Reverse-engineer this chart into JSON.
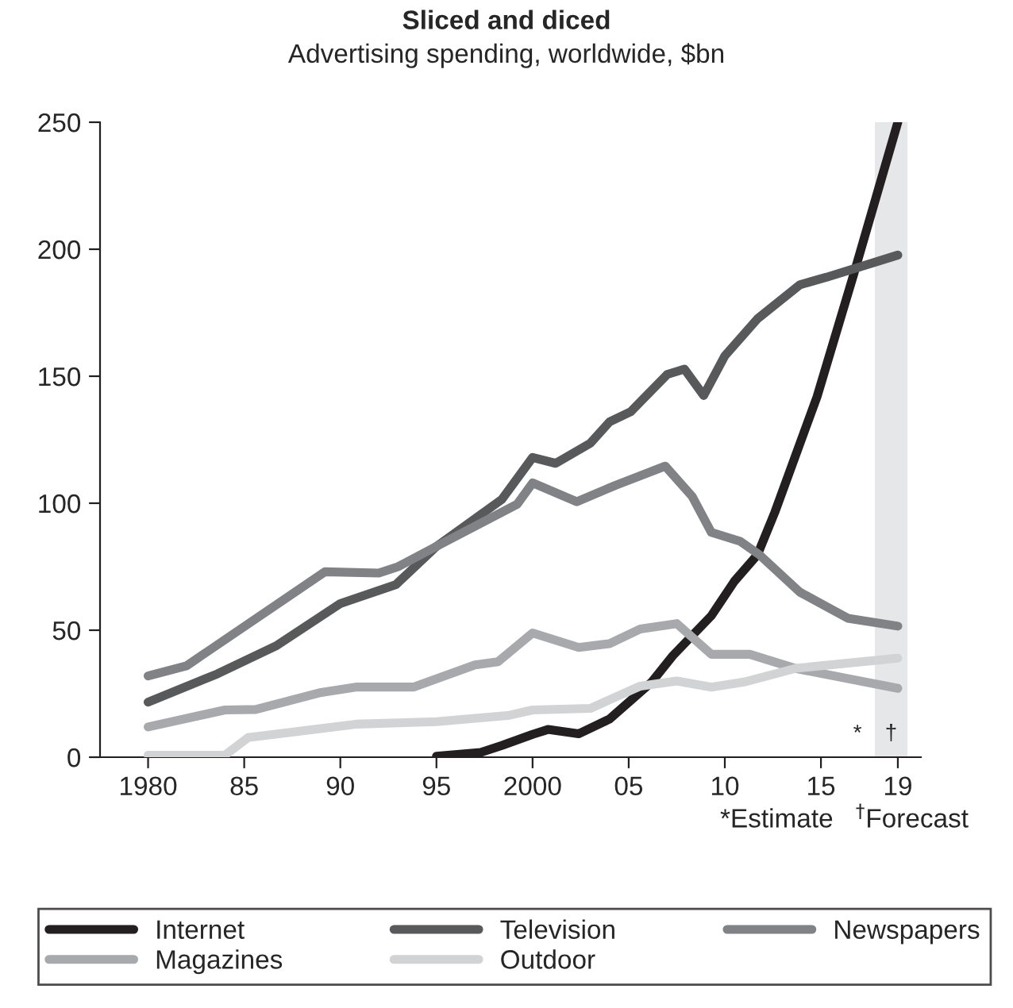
{
  "chart_data": {
    "type": "line",
    "title": "Sliced and diced",
    "subtitle": "Advertising spending, worldwide, $bn",
    "xlim": [
      1977.5,
      2020.2
    ],
    "ylim": [
      0,
      250
    ],
    "xticks": [
      {
        "value": 1980,
        "label": "1980"
      },
      {
        "value": 1985,
        "label": "85"
      },
      {
        "value": 1990,
        "label": "90"
      },
      {
        "value": 1995,
        "label": "95"
      },
      {
        "value": 2000,
        "label": "2000"
      },
      {
        "value": 2005,
        "label": "05"
      },
      {
        "value": 2010,
        "label": "10"
      },
      {
        "value": 2015,
        "label": "15"
      },
      {
        "value": 2019,
        "label": "19"
      }
    ],
    "yticks": [
      0,
      50,
      100,
      150,
      200,
      250
    ],
    "grid": false,
    "legend": "bottom",
    "line_style": "solid",
    "marker": "none",
    "bands": [
      {
        "axis": "x",
        "from": 2017.8,
        "to": 2019.5,
        "color": "#e6e7e8",
        "label": "†"
      }
    ],
    "annotations": [
      "*",
      "*Estimate   $^{†}$Forecast"
    ],
    "series": [
      {
        "name": "Internet",
        "color": "#231f20",
        "x": [
          1995,
          1997.3,
          1998.4,
          2000,
          2000.8,
          2002.4,
          2004,
          2006.2,
          2007.3,
          2009.3,
          2010.5,
          2011.7,
          2012.6,
          2014.8,
          2016.7,
          2019
        ],
        "values": [
          0.4,
          1.9,
          4.6,
          9,
          10.9,
          9.2,
          15,
          29.6,
          40,
          55.7,
          69.3,
          79.7,
          96.4,
          142,
          190,
          250
        ]
      },
      {
        "name": "Television",
        "color": "#58595b",
        "x": [
          1980,
          1983.6,
          1986.7,
          1990,
          1992.9,
          1995,
          1998.4,
          2000,
          2001.2,
          2003,
          2004,
          2005.1,
          2007,
          2007.9,
          2008.9,
          2010,
          2011.7,
          2013.9,
          2015.3,
          2019
        ],
        "values": [
          21.7,
          32.8,
          44,
          60.5,
          68,
          83,
          101.5,
          118,
          115.7,
          123.6,
          132,
          136,
          150.7,
          152.8,
          142.4,
          158,
          172.6,
          186,
          189,
          197.7
        ]
      },
      {
        "name": "Newspapers",
        "color": "#808285",
        "x": [
          1980,
          1982,
          1989.2,
          1992,
          1993,
          1995,
          1999.2,
          2000,
          2002.3,
          2004.3,
          2006.9,
          2008.3,
          2009.3,
          2010.8,
          2011.8,
          2013.9,
          2016.4,
          2019
        ],
        "values": [
          32,
          36,
          73,
          72.5,
          75,
          83,
          99.6,
          108,
          100.6,
          107,
          114.6,
          102.7,
          88.5,
          85,
          79.7,
          65,
          54.7,
          51.6
        ]
      },
      {
        "name": "Magazines",
        "color": "#a7a9ac",
        "x": [
          1980,
          1984,
          1985.6,
          1989,
          1990.8,
          1993.8,
          1997,
          1998.2,
          2000,
          2002.4,
          2004,
          2005.6,
          2007.5,
          2009.3,
          2011.3,
          2013.7,
          2019
        ],
        "values": [
          11.9,
          18.6,
          18.8,
          25.5,
          27.6,
          27.6,
          36.3,
          37.6,
          48.9,
          43.2,
          44.7,
          50.5,
          52.6,
          40.5,
          40.5,
          34.9,
          27.1
        ]
      },
      {
        "name": "Outdoor",
        "color": "#d1d3d4",
        "x": [
          1980,
          1984,
          1985.2,
          1986.8,
          1990.8,
          1995,
          1998.8,
          2000,
          2003,
          2005.6,
          2007.5,
          2009.3,
          2011,
          2013.7,
          2019
        ],
        "values": [
          0.8,
          0.8,
          7.7,
          9.2,
          13,
          14,
          16.5,
          18.6,
          19.2,
          28,
          30,
          27.6,
          29.6,
          35,
          39
        ]
      }
    ]
  }
}
